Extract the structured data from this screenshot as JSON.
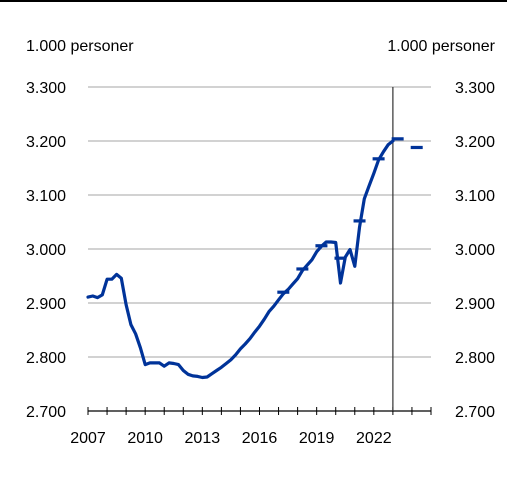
{
  "chart_data": {
    "type": "line",
    "y_unit_left": "1.000 personer",
    "y_unit_right": "1.000 personer",
    "ylim": [
      2700,
      3300
    ],
    "yticks": [
      2700,
      2800,
      2900,
      3000,
      3100,
      3200,
      3300
    ],
    "ytick_labels": [
      "2.700",
      "2.800",
      "2.900",
      "3.000",
      "3.100",
      "3.200",
      "3.300"
    ],
    "xlim": [
      2007,
      2025
    ],
    "xtick_labels": [
      "2007",
      "2010",
      "2013",
      "2016",
      "2019",
      "2022"
    ],
    "xtick_values": [
      2007,
      2010,
      2013,
      2016,
      2019,
      2022
    ],
    "grid": "horizontal",
    "forecast_divider_x": 2023.0,
    "line_color": "#003399",
    "quarterly_series": {
      "x": [
        2007.0,
        2007.25,
        2007.5,
        2007.75,
        2008.0,
        2008.25,
        2008.5,
        2008.75,
        2009.0,
        2009.25,
        2009.5,
        2009.75,
        2010.0,
        2010.25,
        2010.5,
        2010.75,
        2011.0,
        2011.25,
        2011.5,
        2011.75,
        2012.0,
        2012.25,
        2012.5,
        2012.75,
        2013.0,
        2013.25,
        2013.5,
        2013.75,
        2014.0,
        2014.25,
        2014.5,
        2014.75,
        2015.0,
        2015.25,
        2015.5,
        2015.75,
        2016.0,
        2016.25,
        2016.5,
        2016.75,
        2017.0,
        2017.25,
        2017.5,
        2017.75,
        2018.0,
        2018.25,
        2018.5,
        2018.75,
        2019.0,
        2019.25,
        2019.5,
        2019.75,
        2020.0,
        2020.25,
        2020.5,
        2020.75,
        2021.0,
        2021.25,
        2021.5,
        2021.75,
        2022.0,
        2022.25,
        2022.5,
        2022.75,
        2023.0
      ],
      "y": [
        2911,
        2913,
        2910,
        2915,
        2944,
        2944,
        2953,
        2946,
        2897,
        2860,
        2843,
        2817,
        2786,
        2789,
        2789,
        2789,
        2783,
        2789,
        2788,
        2786,
        2775,
        2768,
        2765,
        2764,
        2762,
        2763,
        2769,
        2775,
        2781,
        2788,
        2795,
        2804,
        2815,
        2824,
        2834,
        2846,
        2857,
        2870,
        2884,
        2894,
        2906,
        2917,
        2925,
        2935,
        2945,
        2960,
        2970,
        2980,
        2995,
        3005,
        3013,
        3013,
        3012,
        2937,
        2985,
        2999,
        2968,
        3040,
        3093,
        3117,
        3140,
        3165,
        3180,
        3193,
        3200
      ]
    },
    "annual_markers": {
      "x": [
        2017.25,
        2018.25,
        2019.25,
        2020.25,
        2021.25,
        2022.25,
        2023.25,
        2024.25
      ],
      "y": [
        2920,
        2963,
        3006,
        2983,
        3052,
        3167,
        3204,
        3188
      ]
    }
  }
}
